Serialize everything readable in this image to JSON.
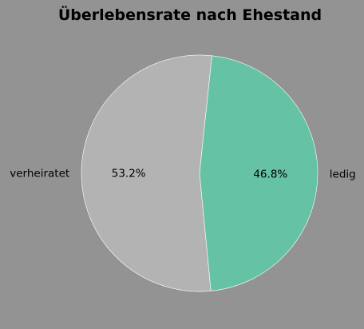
{
  "chart_data": {
    "type": "pie",
    "title": "Überlebensrate nach Ehestand",
    "categories": [
      "verheiratet",
      "ledig"
    ],
    "values": [
      53.2,
      46.8
    ],
    "percent_labels": [
      "53.2%",
      "46.8%"
    ],
    "colors": [
      "#b3b3b3",
      "#66c2a5"
    ],
    "background": "#939393",
    "legend": "none"
  }
}
